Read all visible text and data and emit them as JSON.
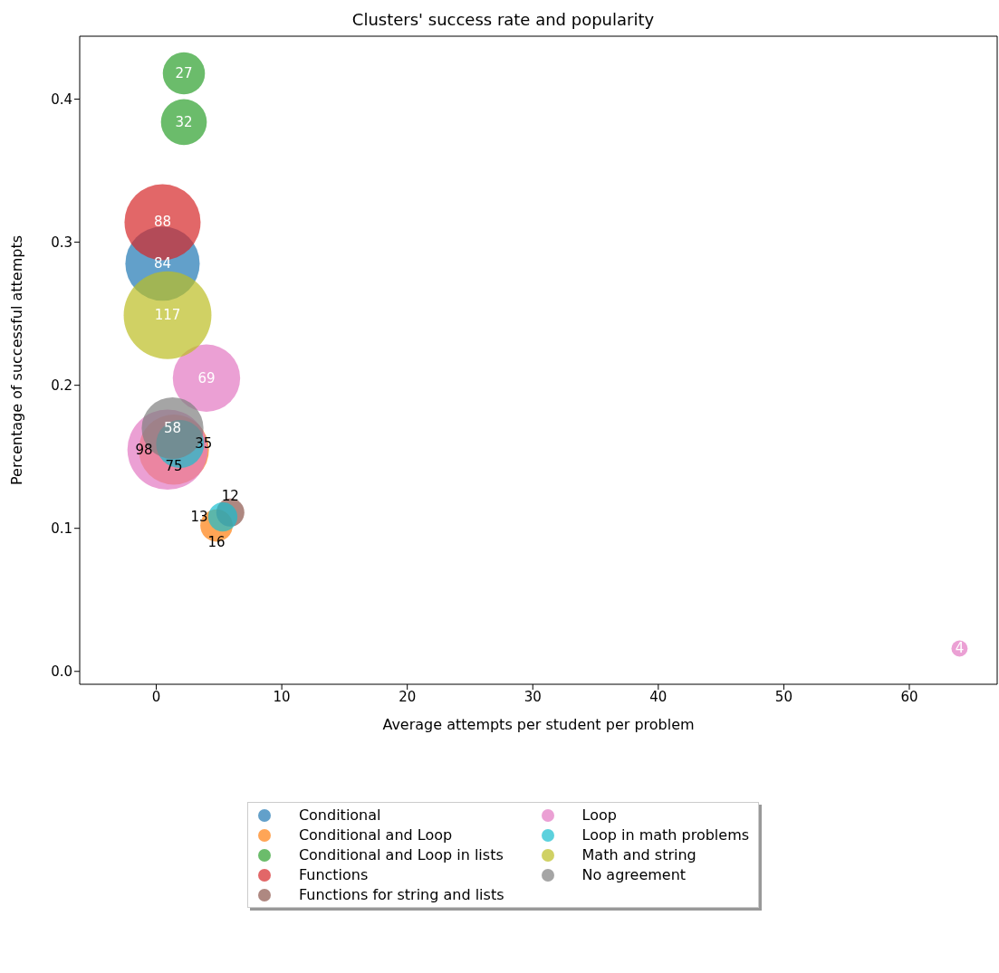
{
  "chart_data": {
    "type": "bubble",
    "title": "Clusters' success rate and popularity",
    "xlabel": "Average attempts per student per problem",
    "ylabel": "Percentage of successful attempts",
    "xlim": [
      -6.1,
      67.0
    ],
    "xticks": [
      0,
      10,
      20,
      30,
      40,
      50,
      60
    ],
    "ylim": [
      -0.009,
      0.444
    ],
    "yticks": [
      {
        "value": 0,
        "label": "0.0"
      },
      0.1,
      0.2,
      0.3,
      0.4
    ],
    "grid": false,
    "legend": "bottom",
    "marker": "circle",
    "series": [
      {
        "name": "Conditional",
        "color": "#1f77b4",
        "x": [
          0.5
        ],
        "values": [
          0.285
        ],
        "sizes": [
          84
        ],
        "value_labels": [
          "84"
        ]
      },
      {
        "name": "Conditional and Loop",
        "color": "#ff7f0e",
        "x": [
          1.4,
          4.8
        ],
        "values": [
          0.155,
          0.102
        ],
        "sizes": [
          75,
          16
        ],
        "value_labels": [
          "75",
          "16"
        ]
      },
      {
        "name": "Conditional and Loop in lists",
        "color": "#2ca02c",
        "x": [
          2.2,
          2.2
        ],
        "values": [
          0.418,
          0.384
        ],
        "sizes": [
          27,
          32
        ],
        "value_labels": [
          "27",
          "32"
        ]
      },
      {
        "name": "Functions",
        "color": "#d62728",
        "x": [
          0.5
        ],
        "values": [
          0.314
        ],
        "sizes": [
          88
        ],
        "value_labels": [
          "88"
        ]
      },
      {
        "name": "Functions for string and lists",
        "color": "#8c564b",
        "x": [
          5.9
        ],
        "values": [
          0.111
        ],
        "sizes": [
          12
        ],
        "value_labels": [
          "12"
        ]
      },
      {
        "name": "Loop",
        "color": "#e377c2",
        "x": [
          4.0,
          0.9,
          64.0
        ],
        "values": [
          0.205,
          0.155,
          0.016
        ],
        "sizes": [
          69,
          98,
          4
        ],
        "value_labels": [
          "69",
          "98",
          "4"
        ]
      },
      {
        "name": "Loop in math problems",
        "color": "#17becf",
        "x": [
          1.9,
          5.3
        ],
        "values": [
          0.159,
          0.108
        ],
        "sizes": [
          35,
          13
        ],
        "value_labels": [
          "35",
          "13"
        ]
      },
      {
        "name": "Math and string",
        "color": "#bcbd22",
        "x": [
          0.9
        ],
        "values": [
          0.249
        ],
        "sizes": [
          117
        ],
        "value_labels": [
          "117"
        ]
      },
      {
        "name": "No agreement",
        "color": "#7f7f7f",
        "x": [
          1.3
        ],
        "values": [
          0.17
        ],
        "sizes": [
          58
        ],
        "value_labels": [
          "58"
        ]
      }
    ]
  }
}
